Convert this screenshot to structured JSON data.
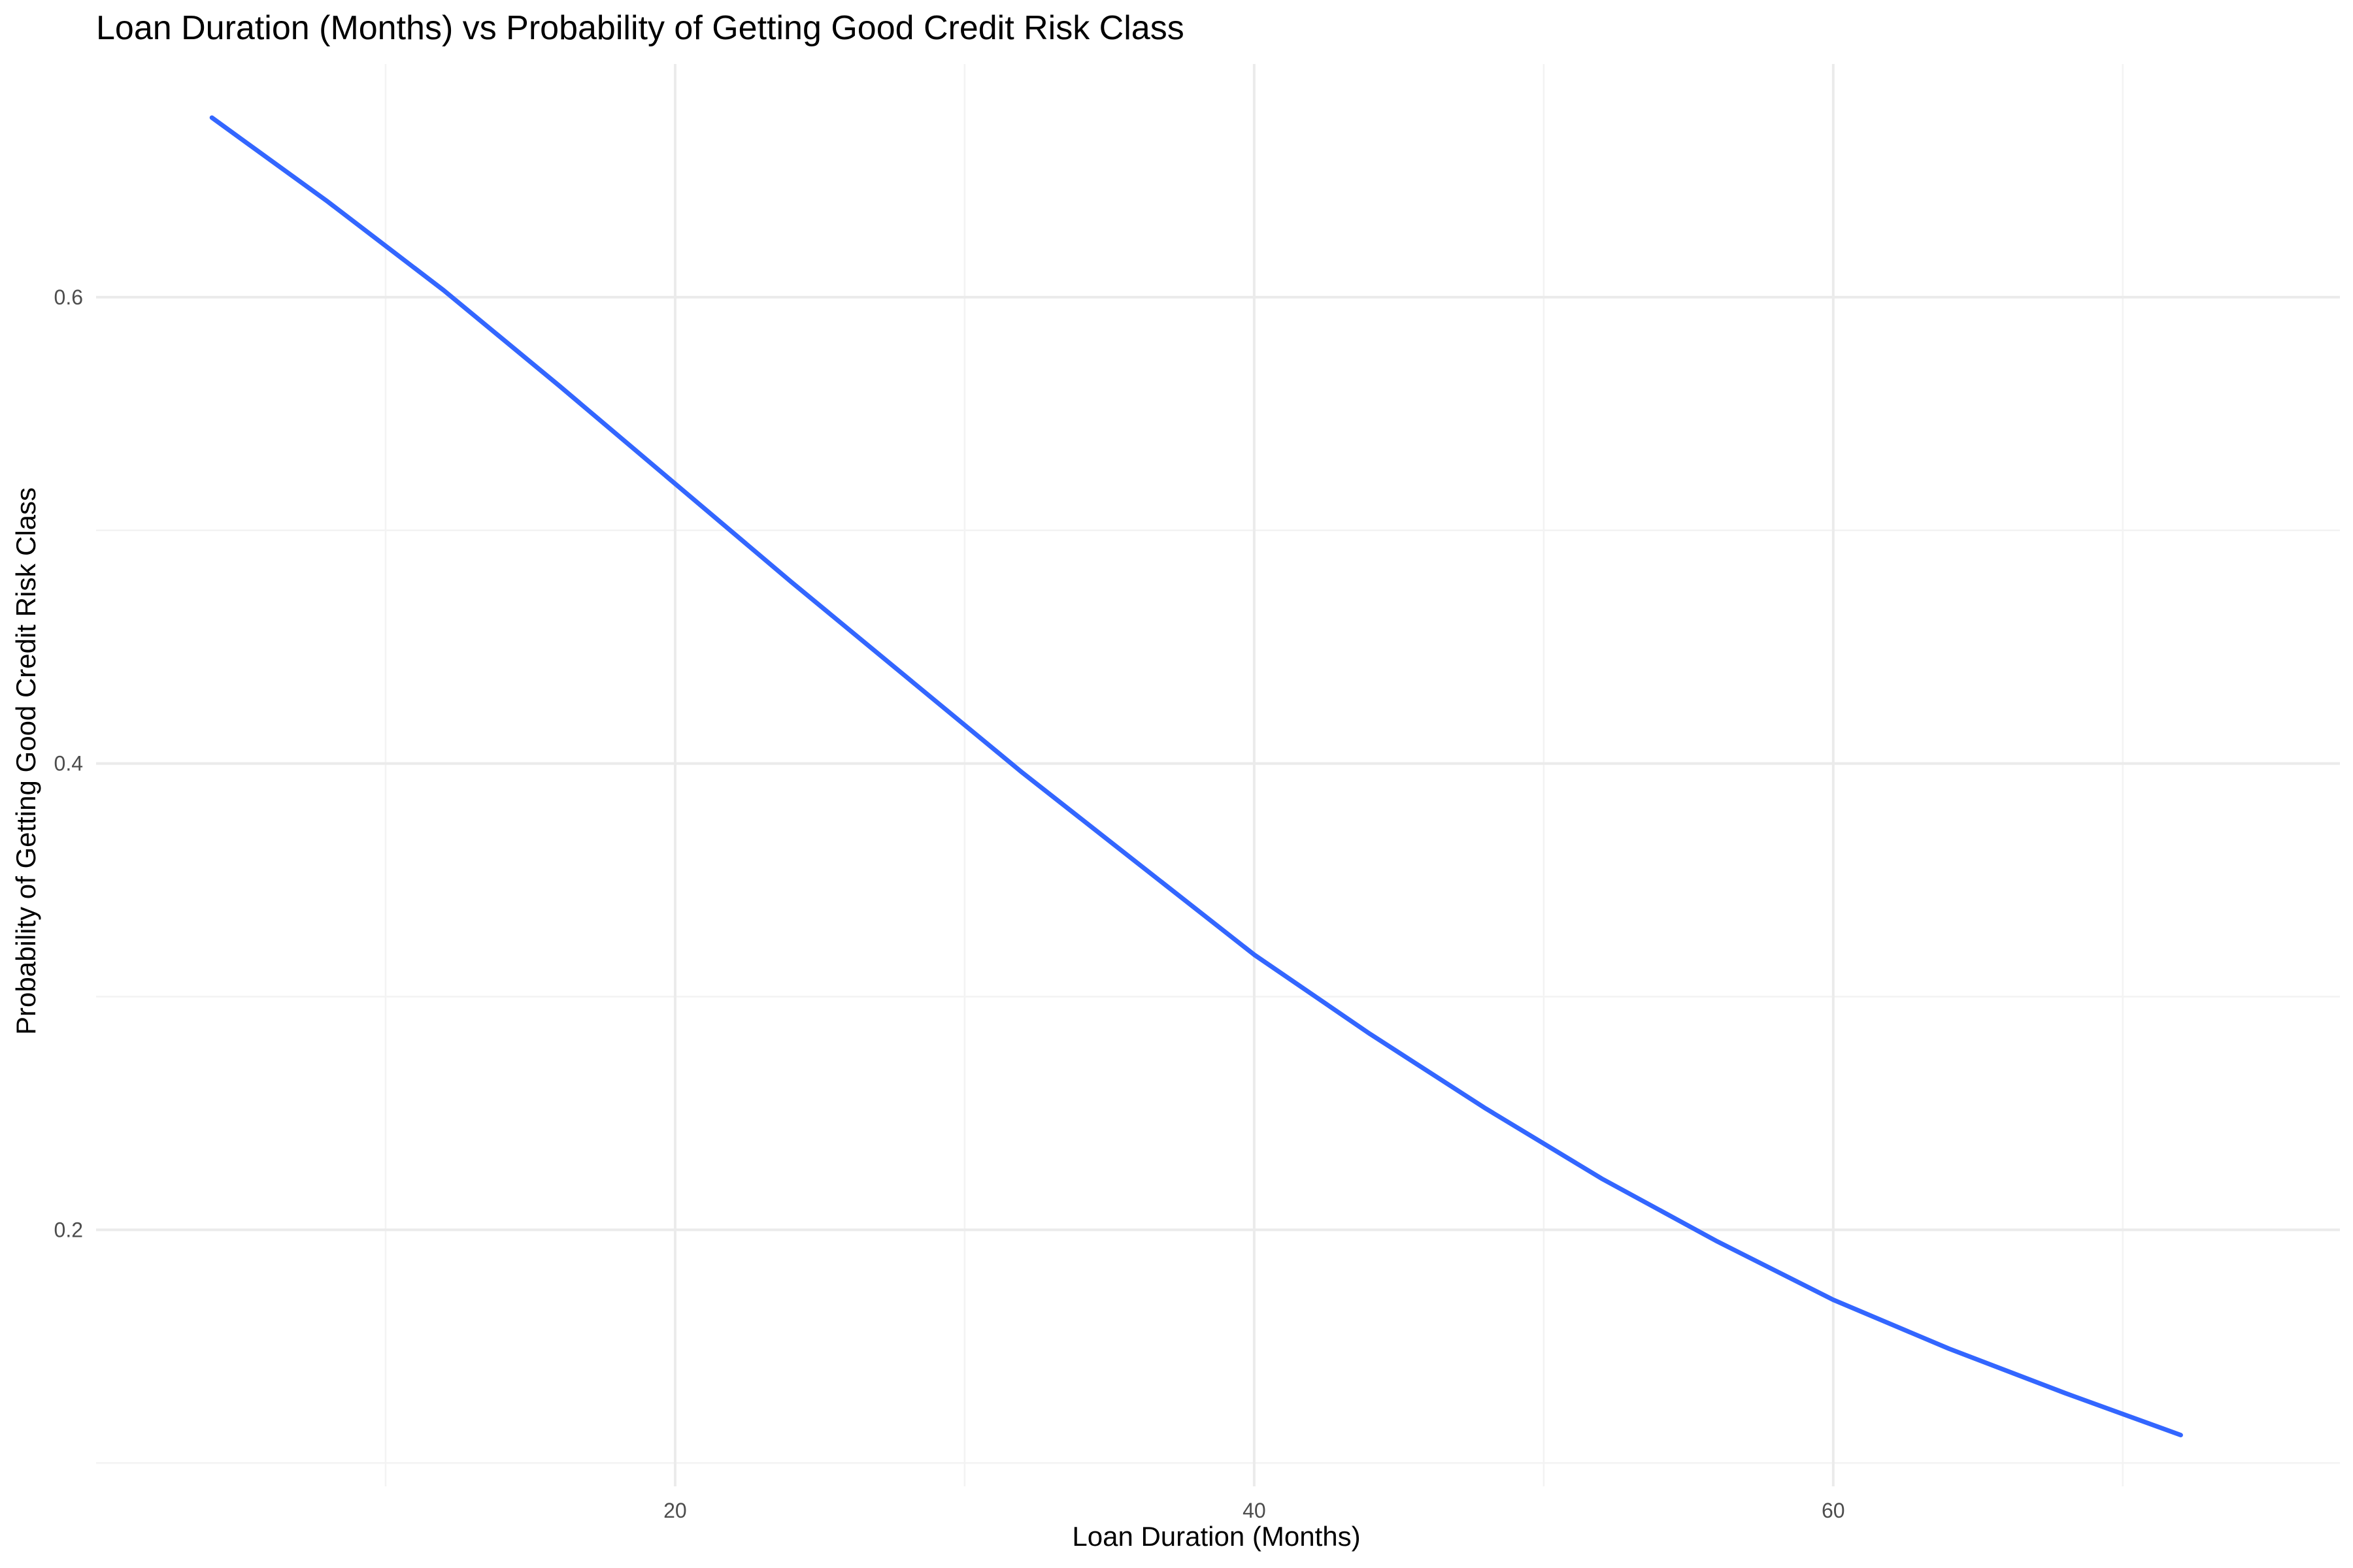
{
  "chart_data": {
    "type": "line",
    "title": "Loan Duration (Months) vs Probability of Getting Good Credit Risk Class",
    "xlabel": "Loan Duration (Months)",
    "ylabel": "Probability of Getting Good Credit Risk Class",
    "xlim": [
      0,
      77.5
    ],
    "ylim": [
      0.09,
      0.7
    ],
    "x_ticks": [
      20,
      40,
      60
    ],
    "x_tick_labels": [
      "20",
      "40",
      "60"
    ],
    "x_minor_ticks": [
      10,
      30,
      50,
      70
    ],
    "y_ticks": [
      0.2,
      0.4,
      0.6
    ],
    "y_tick_labels": [
      "0.2",
      "0.4",
      "0.6"
    ],
    "y_minor_ticks": [
      0.1,
      0.3,
      0.5
    ],
    "grid": true,
    "line_color": "#3366ff",
    "series": [
      {
        "x": [
          4,
          8,
          12,
          16,
          20,
          24,
          28,
          32,
          36,
          40,
          44,
          48,
          52,
          56,
          60,
          64,
          68,
          72
        ],
        "values": [
          0.677,
          0.641,
          0.603,
          0.562,
          0.52,
          0.478,
          0.437,
          0.396,
          0.357,
          0.318,
          0.284,
          0.252,
          0.222,
          0.195,
          0.17,
          0.149,
          0.13,
          0.112
        ]
      }
    ]
  }
}
